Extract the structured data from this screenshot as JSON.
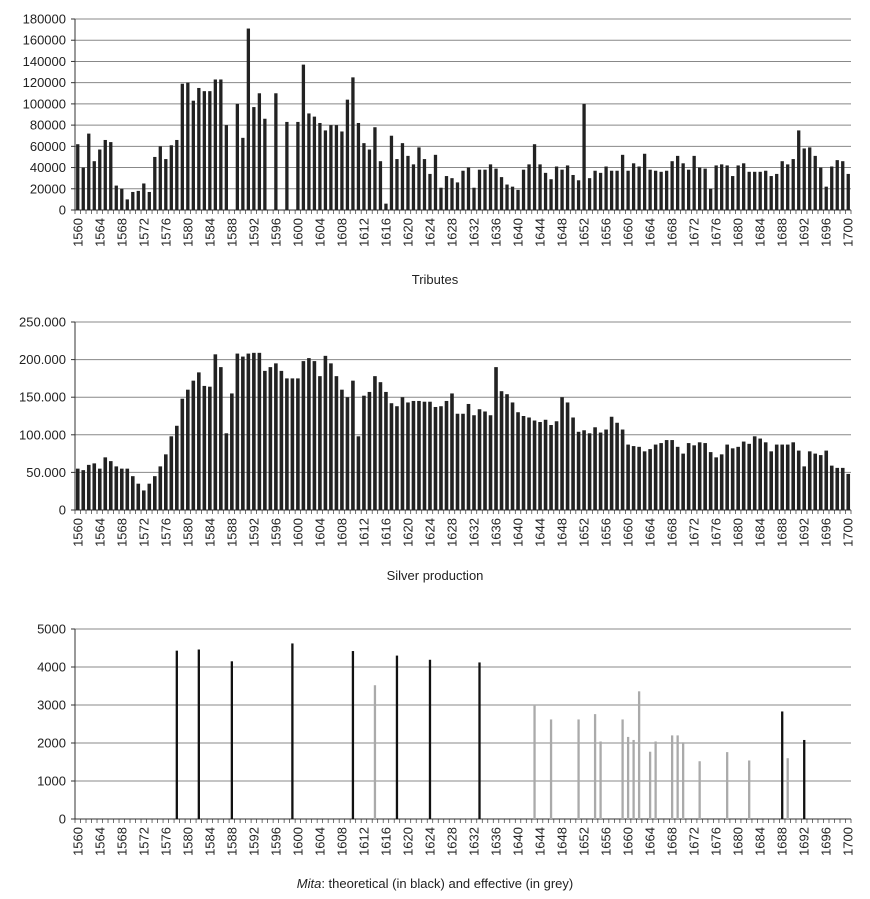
{
  "chart_data": [
    {
      "type": "bar",
      "title": "Tributes",
      "xlabel": "",
      "ylabel": "",
      "x_start": 1560,
      "x_end": 1700,
      "tick_labels": [
        "1560",
        "1564",
        "1568",
        "1572",
        "1576",
        "1580",
        "1584",
        "1588",
        "1592",
        "1596",
        "1600",
        "1604",
        "1608",
        "1612",
        "1616",
        "1620",
        "1624",
        "1628",
        "1632",
        "1636",
        "1640",
        "1644",
        "1648",
        "1652",
        "1656",
        "1660",
        "1664",
        "1668",
        "1672",
        "1676",
        "1680",
        "1684",
        "1688",
        "1692",
        "1696",
        "1700"
      ],
      "y_tick_labels": [
        "0",
        "20000",
        "40000",
        "60000",
        "80000",
        "100000",
        "120000",
        "140000",
        "160000",
        "180000"
      ],
      "ylim": [
        0,
        180000
      ],
      "grid": true,
      "colors": {
        "bar": "#222222",
        "grid": "#888888"
      },
      "values": [
        62000,
        40000,
        72000,
        46000,
        57000,
        66000,
        64000,
        23000,
        20000,
        10000,
        17000,
        18000,
        25000,
        17000,
        50000,
        60000,
        48000,
        61000,
        66000,
        119000,
        120000,
        103000,
        115000,
        112000,
        112000,
        123000,
        123000,
        80000,
        0,
        100000,
        68000,
        171000,
        97000,
        110000,
        86000,
        0,
        110000,
        0,
        83000,
        0,
        83000,
        137000,
        91000,
        88000,
        82000,
        75000,
        80000,
        80000,
        74000,
        104000,
        125000,
        82000,
        63000,
        57000,
        78000,
        46000,
        6000,
        70000,
        48000,
        63000,
        51000,
        43000,
        59000,
        48000,
        34000,
        52000,
        21000,
        32000,
        30000,
        26000,
        37000,
        40000,
        21000,
        38000,
        38000,
        43000,
        39000,
        31000,
        24000,
        22000,
        19000,
        38000,
        43000,
        62000,
        43000,
        35000,
        29000,
        41000,
        38000,
        42000,
        33000,
        28000,
        100000,
        30000,
        37000,
        35000,
        41000,
        37000,
        37000,
        52000,
        37000,
        44000,
        41000,
        53000,
        38000,
        37000,
        36000,
        37000,
        46000,
        51000,
        44000,
        38000,
        51000,
        40000,
        39000,
        20000,
        42000,
        43000,
        42000,
        32000,
        42000,
        44000,
        36000,
        36000,
        36000,
        37000,
        32000,
        34000,
        46000,
        43000,
        48000,
        75000,
        58000,
        59000,
        51000,
        40000,
        22000,
        41000,
        47000,
        46000,
        34000
      ]
    },
    {
      "type": "bar",
      "title": "Silver production",
      "xlabel": "",
      "ylabel": "",
      "x_start": 1560,
      "x_end": 1700,
      "tick_labels": [
        "1560",
        "1564",
        "1568",
        "1572",
        "1576",
        "1580",
        "1584",
        "1588",
        "1592",
        "1596",
        "1600",
        "1604",
        "1608",
        "1612",
        "1616",
        "1620",
        "1624",
        "1628",
        "1632",
        "1636",
        "1640",
        "1644",
        "1648",
        "1652",
        "1656",
        "1660",
        "1664",
        "1668",
        "1672",
        "1676",
        "1680",
        "1684",
        "1688",
        "1692",
        "1696",
        "1700"
      ],
      "y_tick_labels": [
        "0",
        "50.000",
        "100.000",
        "150.000",
        "200.000",
        "250.000"
      ],
      "ylim": [
        0,
        250000
      ],
      "grid": true,
      "colors": {
        "bar": "#222222",
        "grid": "#888888"
      },
      "values": [
        55000,
        53000,
        60000,
        62000,
        55000,
        70000,
        65000,
        58000,
        55000,
        55000,
        45000,
        35000,
        26000,
        35000,
        45000,
        58000,
        74000,
        98000,
        112000,
        148000,
        160000,
        172000,
        183000,
        165000,
        164000,
        207000,
        190000,
        102000,
        155000,
        208000,
        204000,
        208000,
        209000,
        209000,
        185000,
        190000,
        195000,
        185000,
        175000,
        175000,
        175000,
        198000,
        202000,
        198000,
        178000,
        205000,
        195000,
        178000,
        160000,
        150000,
        172000,
        98000,
        152000,
        157000,
        178000,
        170000,
        157000,
        142000,
        138000,
        150000,
        143000,
        145000,
        145000,
        144000,
        144000,
        137000,
        138000,
        145000,
        155000,
        128000,
        128000,
        141000,
        126000,
        134000,
        131000,
        126000,
        190000,
        158000,
        154000,
        143000,
        130000,
        125000,
        123000,
        119000,
        117000,
        120000,
        113000,
        118000,
        150000,
        143000,
        123000,
        104000,
        106000,
        102000,
        110000,
        103000,
        107000,
        124000,
        116000,
        107000,
        87000,
        85000,
        84000,
        78000,
        81000,
        87000,
        89000,
        93000,
        93000,
        84000,
        75000,
        89000,
        86000,
        90000,
        89000,
        77000,
        70000,
        74000,
        87000,
        82000,
        84000,
        91000,
        88000,
        98000,
        95000,
        90000,
        78000,
        87000,
        87000,
        87000,
        90000,
        79000,
        58000,
        78000,
        75000,
        73000,
        79000,
        59000,
        56000,
        56000,
        48000
      ]
    },
    {
      "type": "bar",
      "title": "Mita: theoretical (in black) and effective (in grey)",
      "title_em": "Mita",
      "title_rest": ": theoretical (in black) and effective (in grey)",
      "xlabel": "",
      "ylabel": "",
      "x_start": 1560,
      "x_end": 1700,
      "tick_labels": [
        "1560",
        "1564",
        "1568",
        "1572",
        "1576",
        "1580",
        "1584",
        "1588",
        "1592",
        "1596",
        "1600",
        "1604",
        "1608",
        "1612",
        "1616",
        "1620",
        "1624",
        "1628",
        "1632",
        "1636",
        "1640",
        "1644",
        "1648",
        "1652",
        "1656",
        "1660",
        "1664",
        "1668",
        "1672",
        "1676",
        "1680",
        "1684",
        "1688",
        "1692",
        "1696",
        "1700"
      ],
      "y_tick_labels": [
        "0",
        "1000",
        "2000",
        "3000",
        "4000",
        "5000"
      ],
      "ylim": [
        0,
        5000
      ],
      "grid": true,
      "colors": {
        "theoretical": "#111111",
        "effective": "#aaaaaa",
        "grid": "#888888"
      },
      "series": [
        {
          "name": "theoretical",
          "points": [
            [
              1578,
              4430
            ],
            [
              1582,
              4460
            ],
            [
              1588,
              4150
            ],
            [
              1599,
              4620
            ],
            [
              1610,
              4420
            ],
            [
              1618,
              4300
            ],
            [
              1624,
              4190
            ],
            [
              1633,
              4120
            ],
            [
              1688,
              2830
            ],
            [
              1692,
              2080
            ]
          ]
        },
        {
          "name": "effective",
          "points": [
            [
              1614,
              3520
            ],
            [
              1643,
              2980
            ],
            [
              1646,
              2620
            ],
            [
              1651,
              2620
            ],
            [
              1654,
              2760
            ],
            [
              1655,
              2040
            ],
            [
              1659,
              2620
            ],
            [
              1660,
              2160
            ],
            [
              1661,
              2080
            ],
            [
              1662,
              3360
            ],
            [
              1664,
              1770
            ],
            [
              1665,
              2040
            ],
            [
              1668,
              2200
            ],
            [
              1669,
              2200
            ],
            [
              1670,
              2020
            ],
            [
              1673,
              1520
            ],
            [
              1678,
              1760
            ],
            [
              1682,
              1540
            ],
            [
              1689,
              1600
            ]
          ]
        }
      ]
    }
  ]
}
